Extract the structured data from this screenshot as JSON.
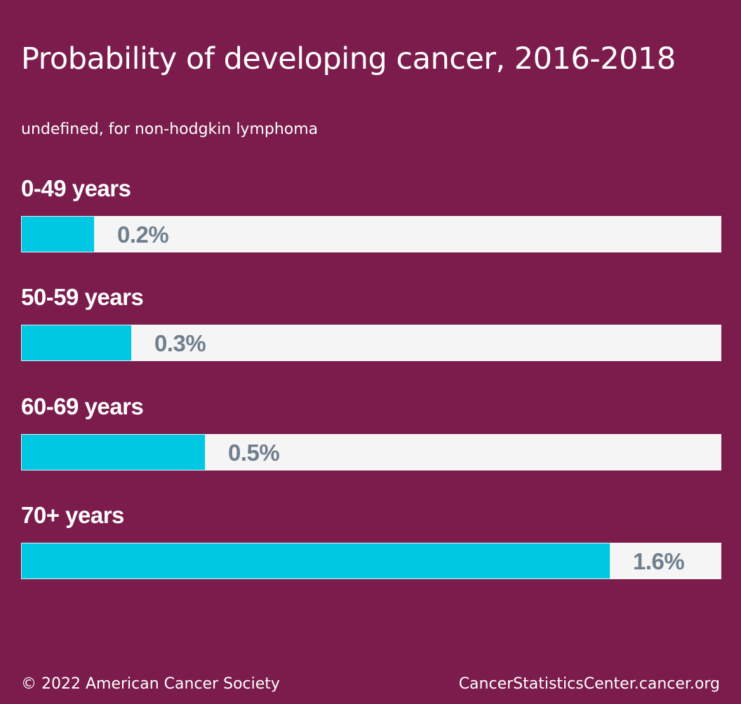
{
  "chart_data": {
    "type": "bar",
    "orientation": "horizontal",
    "title": "Probability of developing cancer, 2016-2018",
    "subtitle": "undefined, for non-hodgkin lymphoma",
    "categories": [
      "0-49 years",
      "50-59 years",
      "60-69 years",
      "70+ years"
    ],
    "values": [
      0.2,
      0.3,
      0.5,
      1.6
    ],
    "value_labels": [
      "0.2%",
      "0.3%",
      "0.5%",
      "1.6%"
    ],
    "unit": "%",
    "xlim": [
      0,
      1.9
    ],
    "bar_color": "#00c8e3",
    "track_color": "#f5f5f5",
    "background_color": "#7b1c4c",
    "value_label_color": "#6f7f8e",
    "grid": false,
    "legend": "none"
  },
  "footer": {
    "copyright": "© 2022 American Cancer Society",
    "site": "CancerStatisticsCenter.cancer.org"
  }
}
